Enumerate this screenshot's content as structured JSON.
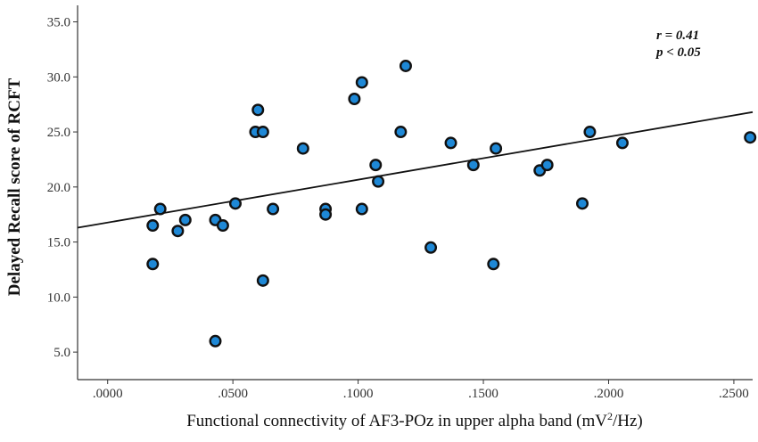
{
  "chart_data": {
    "type": "scatter",
    "xlabel": "Functional connectivity of AF3-POz in upper alpha band (mV",
    "xlabel_sup": "2",
    "xlabel_end": "/Hz)",
    "ylabel": "Delayed Recall score of RCFT",
    "xlim": [
      -0.012,
      0.2575
    ],
    "ylim": [
      2.5,
      36.5
    ],
    "x_ticks": [
      0,
      0.05,
      0.1,
      0.15,
      0.2,
      0.25
    ],
    "x_tick_labels": [
      ".0000",
      ".0500",
      ".1000",
      ".1500",
      ".2000",
      ".2500"
    ],
    "y_ticks": [
      5,
      10,
      15,
      20,
      25,
      30,
      35
    ],
    "y_tick_labels": [
      "5.0",
      "10.0",
      "15.0",
      "20.0",
      "25.0",
      "30.0",
      "35.0"
    ],
    "grid": false,
    "annotations": [
      "r = 0.41",
      "p < 0.05"
    ],
    "fit_line": {
      "x": [
        -0.012,
        0.2575
      ],
      "y": [
        16.3,
        26.8
      ]
    },
    "points": [
      {
        "x": 0.018,
        "y": 13.0
      },
      {
        "x": 0.018,
        "y": 16.5
      },
      {
        "x": 0.021,
        "y": 18.0
      },
      {
        "x": 0.028,
        "y": 16.0
      },
      {
        "x": 0.031,
        "y": 17.0
      },
      {
        "x": 0.043,
        "y": 17.0
      },
      {
        "x": 0.043,
        "y": 6.0
      },
      {
        "x": 0.046,
        "y": 16.5
      },
      {
        "x": 0.051,
        "y": 18.5
      },
      {
        "x": 0.059,
        "y": 25.0
      },
      {
        "x": 0.06,
        "y": 27.0
      },
      {
        "x": 0.062,
        "y": 25.0
      },
      {
        "x": 0.062,
        "y": 11.5
      },
      {
        "x": 0.066,
        "y": 18.0
      },
      {
        "x": 0.078,
        "y": 23.5
      },
      {
        "x": 0.087,
        "y": 18.0
      },
      {
        "x": 0.087,
        "y": 17.5
      },
      {
        "x": 0.0985,
        "y": 28.0
      },
      {
        "x": 0.1015,
        "y": 29.5
      },
      {
        "x": 0.1015,
        "y": 18.0
      },
      {
        "x": 0.107,
        "y": 22.0
      },
      {
        "x": 0.108,
        "y": 20.5
      },
      {
        "x": 0.117,
        "y": 25.0
      },
      {
        "x": 0.119,
        "y": 31.0
      },
      {
        "x": 0.129,
        "y": 14.5
      },
      {
        "x": 0.137,
        "y": 24.0
      },
      {
        "x": 0.146,
        "y": 22.0
      },
      {
        "x": 0.154,
        "y": 13.0
      },
      {
        "x": 0.155,
        "y": 23.5
      },
      {
        "x": 0.1725,
        "y": 21.5
      },
      {
        "x": 0.1755,
        "y": 22.0
      },
      {
        "x": 0.1895,
        "y": 18.5
      },
      {
        "x": 0.1925,
        "y": 25.0
      },
      {
        "x": 0.2055,
        "y": 24.0
      },
      {
        "x": 0.2565,
        "y": 24.5
      }
    ],
    "colors": {
      "marker_fill": "#1e88d6",
      "marker_edge": "#111111",
      "axis": "#333333",
      "fit": "#111111"
    }
  }
}
